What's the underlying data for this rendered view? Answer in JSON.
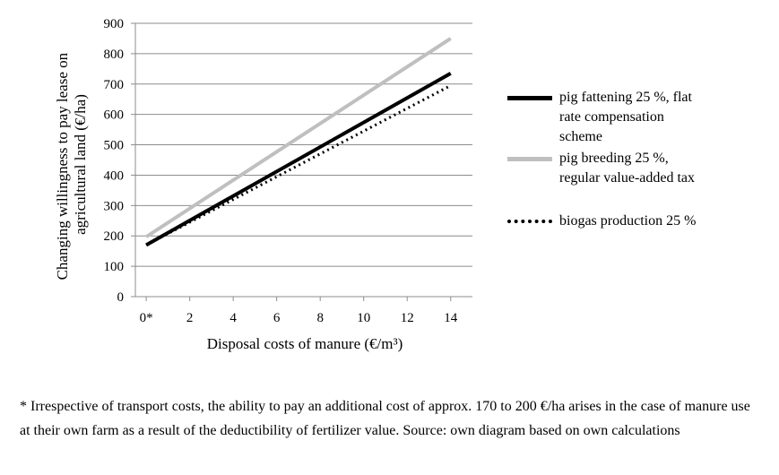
{
  "chart_data": {
    "type": "line",
    "x": [
      0,
      14
    ],
    "x_ticks": [
      "0*",
      "2",
      "4",
      "6",
      "8",
      "10",
      "12",
      "14"
    ],
    "y_ticks": [
      "0",
      "100",
      "200",
      "300",
      "400",
      "500",
      "600",
      "700",
      "800",
      "900"
    ],
    "xlim": [
      -0.5,
      15
    ],
    "ylim": [
      0,
      900
    ],
    "xlabel": "Disposal costs of manure (€/m³)",
    "ylabel": "Changing willingness to pay lease on agricultural land (€/ha)",
    "ylabel_lines": [
      "Changing willingness to pay lease on",
      "agricultural land (€/ha)"
    ],
    "grid": true,
    "legend_position": "right",
    "series": [
      {
        "name": "pig fattening 25 %, flat rate compensation scheme",
        "legend_lines": [
          "pig fattening 25 %, flat",
          "rate compensation",
          "scheme"
        ],
        "values": [
          170,
          735
        ],
        "color": "#000000",
        "style": "solid-thick"
      },
      {
        "name": "pig breeding 25 %, regular value-added tax",
        "legend_lines": [
          "pig breeding 25 %,",
          "regular value-added tax"
        ],
        "values": [
          197,
          850
        ],
        "color": "#bfbfbf",
        "style": "solid-thick"
      },
      {
        "name": "biogas production 25 %",
        "legend_lines": [
          "biogas production 25 %"
        ],
        "values": [
          170,
          695
        ],
        "color": "#000000",
        "style": "dotted"
      }
    ]
  },
  "footnote": "* Irrespective of transport costs, the ability to pay an additional cost of approx. 170 to 200 €/ha arises in the case of manure use at their own farm as a result of the deductibility of fertilizer value. Source: own diagram based on own calculations"
}
